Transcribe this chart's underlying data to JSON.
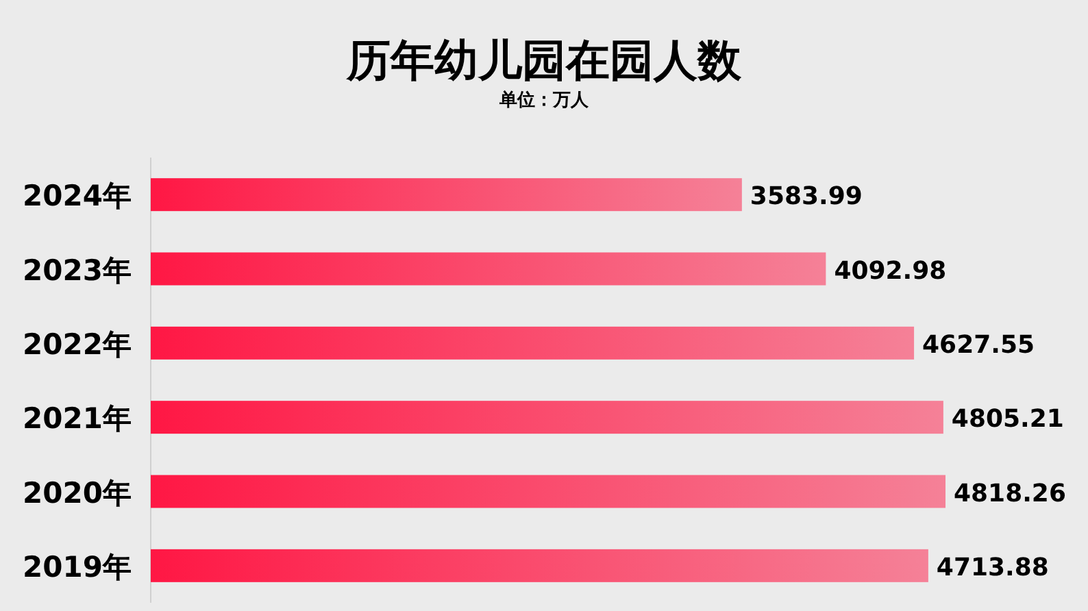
{
  "chart_data": {
    "type": "bar",
    "orientation": "horizontal",
    "title": "历年幼儿园在园人数",
    "subtitle": "单位：万人",
    "categories": [
      "2024年",
      "2023年",
      "2022年",
      "2021年",
      "2020年",
      "2019年"
    ],
    "values": [
      3583.99,
      4092.98,
      4627.55,
      4805.21,
      4818.26,
      4713.88
    ],
    "color": "#ff1744",
    "data_labels": true
  }
}
